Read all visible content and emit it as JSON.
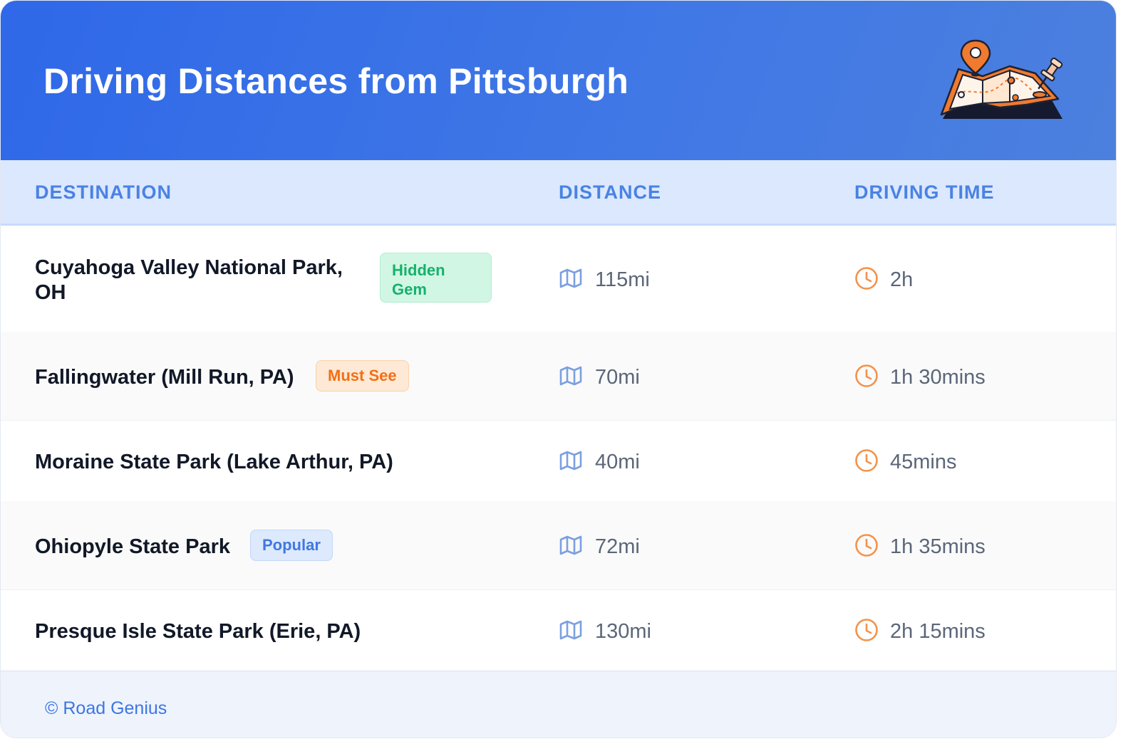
{
  "title": "Driving Distances from Pittsburgh",
  "header_icon": "map-with-pins-icon",
  "columns": [
    "DESTINATION",
    "DISTANCE",
    "DRIVING TIME"
  ],
  "rows": [
    {
      "destination": "Cuyahoga Valley National Park, OH",
      "badge": "Hidden Gem",
      "badge_color": "#16b16d",
      "distance": "115mi",
      "time": "2h"
    },
    {
      "destination": "Fallingwater (Mill Run, PA)",
      "badge": "Must See",
      "badge_color": "#f46f16",
      "distance": "70mi",
      "time": "1h 30mins"
    },
    {
      "destination": "Moraine State Park (Lake Arthur, PA)",
      "badge": "",
      "distance": "40mi",
      "time": "45mins"
    },
    {
      "destination": "Ohiopyle State Park",
      "badge": "Popular",
      "badge_color": "#3f78e2",
      "distance": "72mi",
      "time": "1h 35mins"
    },
    {
      "destination": "Presque Isle State Park (Erie, PA)",
      "badge": "",
      "distance": "130mi",
      "time": "2h 15mins"
    }
  ],
  "icons": {
    "distance": "map-icon",
    "time": "clock-icon"
  },
  "footer": "© Road Genius",
  "colors": {
    "header": "#2f68e8",
    "accent": "#4a82e3",
    "clock": "#f4924a",
    "map": "#7b9fe0"
  }
}
